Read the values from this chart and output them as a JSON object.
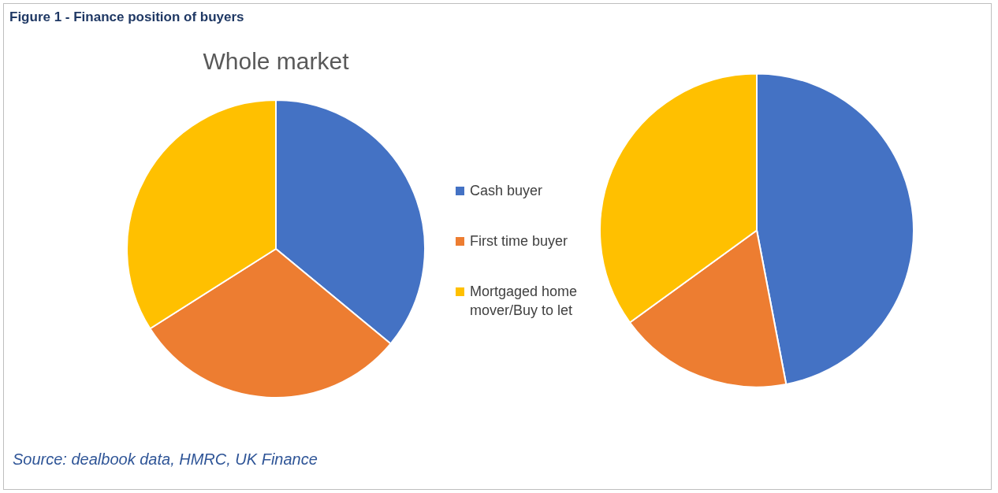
{
  "chart_data": {
    "type": "pie",
    "categories": [
      "Cash buyer",
      "First time buyer",
      "Mortgaged home mover/Buy to let"
    ],
    "colors": [
      "#4472c4",
      "#ed7d31",
      "#ffc000"
    ],
    "legend": "right",
    "annotations": [
      "Figure 1 - Finance position of buyers",
      "Source: dealbook data, HMRC, UK Finance"
    ],
    "series": [
      {
        "name": "Whole market",
        "values": [
          36,
          30,
          34
        ]
      },
      {
        "values": [
          47,
          18,
          35
        ]
      }
    ]
  }
}
